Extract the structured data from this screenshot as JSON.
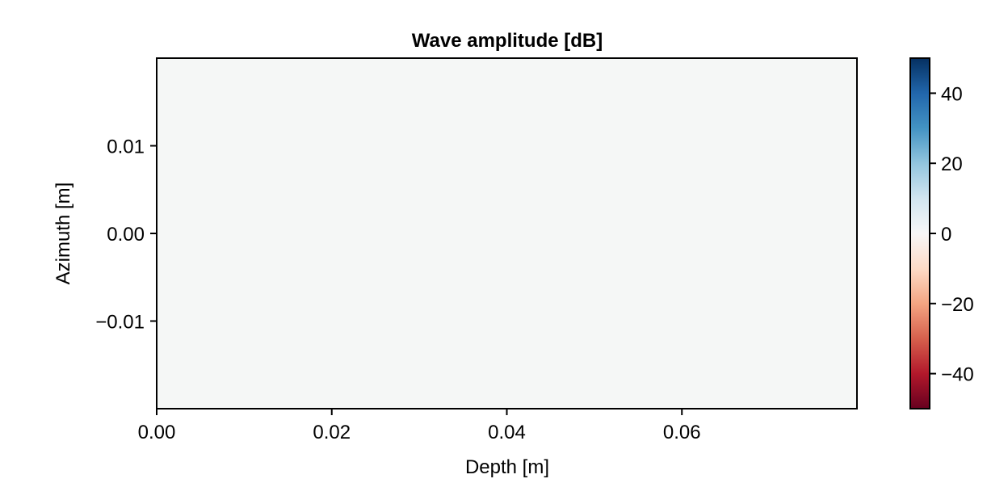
{
  "chart_data": {
    "type": "heatmap",
    "title": "Wave amplitude [dB]",
    "xlabel": "Depth [m]",
    "ylabel": "Azimuth [m]",
    "xlim": [
      0.0,
      0.08
    ],
    "ylim": [
      -0.02,
      0.02
    ],
    "x_ticks": [
      {
        "value": 0.0,
        "label": "0.00"
      },
      {
        "value": 0.02,
        "label": "0.02"
      },
      {
        "value": 0.04,
        "label": "0.04"
      },
      {
        "value": 0.06,
        "label": "0.06"
      }
    ],
    "y_ticks": [
      {
        "value": 0.01,
        "label": "0.01"
      },
      {
        "value": 0.0,
        "label": "0.00"
      },
      {
        "value": -0.01,
        "label": "−0.01"
      }
    ],
    "values": [
      [
        0
      ]
    ],
    "fill_color": "#f5f7f6",
    "colorbar": {
      "colormap": "RdBu",
      "range": [
        -50,
        50
      ],
      "ticks": [
        {
          "value": 40,
          "label": "40"
        },
        {
          "value": 20,
          "label": "20"
        },
        {
          "value": 0,
          "label": "0"
        },
        {
          "value": -20,
          "label": "−20"
        },
        {
          "value": -40,
          "label": "−40"
        }
      ],
      "stops": [
        "#67001f",
        "#b2182b",
        "#d6604d",
        "#f4a582",
        "#fddbc7",
        "#f7f7f7",
        "#d1e5f0",
        "#92c5de",
        "#4393c3",
        "#2166ac",
        "#053061"
      ]
    },
    "grid": false
  }
}
